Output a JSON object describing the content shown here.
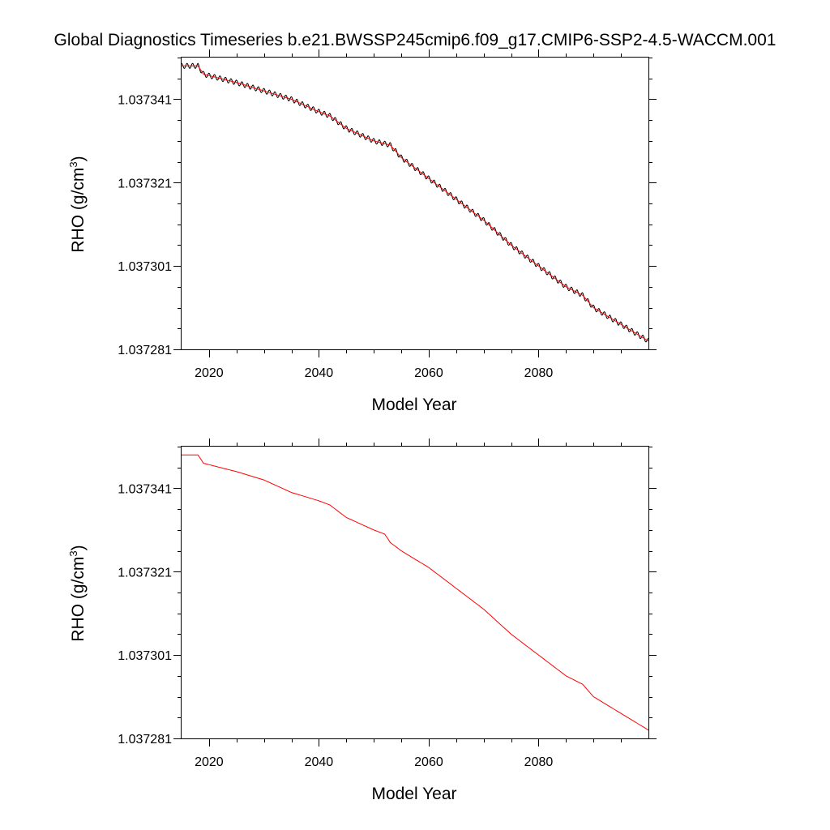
{
  "title": "Global Diagnostics Timeseries b.e21.BWSSP245cmip6.f09_g17.CMIP6-SSP2-4.5-WACCM.001",
  "colors": {
    "black_line": "#000000",
    "red_line": "#ff0000",
    "frame": "#000000"
  },
  "chart_data": [
    {
      "type": "line",
      "xlabel": "Model Year",
      "ylabel_main": "RHO (g/cm",
      "ylabel_sup": "3",
      "ylabel_close": ")",
      "xlim": [
        2015,
        2100
      ],
      "ylim": [
        1.037281,
        1.037351
      ],
      "xticks": [
        "2020",
        "2040",
        "2060",
        "2080"
      ],
      "yticks": [
        "1.037281",
        "1.037301",
        "1.037321",
        "1.037341"
      ],
      "series": [
        {
          "style": "monthly",
          "color": "#000000",
          "seasonal_amplitude": 6e-07
        },
        {
          "style": "annual",
          "color": "#ff0000"
        }
      ],
      "trend": {
        "x": [
          2015,
          2018,
          2019,
          2025,
          2030,
          2035,
          2040,
          2042,
          2045,
          2050,
          2053,
          2055,
          2060,
          2065,
          2068,
          2070,
          2075,
          2080,
          2085,
          2088,
          2090,
          2095,
          2100
        ],
        "y": [
          1.037349,
          1.037349,
          1.037347,
          1.037345,
          1.037343,
          1.037341,
          1.037338,
          1.037337,
          1.037334,
          1.037331,
          1.03733,
          1.037327,
          1.037322,
          1.037317,
          1.037314,
          1.037312,
          1.037306,
          1.037301,
          1.037296,
          1.037294,
          1.037291,
          1.037287,
          1.037283
        ]
      }
    },
    {
      "type": "line",
      "xlabel": "Model Year",
      "ylabel_main": "RHO (g/cm",
      "ylabel_sup": "3",
      "ylabel_close": ")",
      "xlim": [
        2015,
        2100
      ],
      "ylim": [
        1.037281,
        1.037351
      ],
      "xticks": [
        "2020",
        "2040",
        "2060",
        "2080"
      ],
      "yticks": [
        "1.037281",
        "1.037301",
        "1.037321",
        "1.037341"
      ],
      "series": [
        {
          "style": "annual",
          "color": "#ff0000"
        }
      ],
      "trend": {
        "x": [
          2015,
          2018,
          2019,
          2022,
          2025,
          2030,
          2035,
          2040,
          2042,
          2045,
          2050,
          2052,
          2053,
          2055,
          2060,
          2065,
          2068,
          2070,
          2075,
          2080,
          2085,
          2088,
          2090,
          2095,
          2100
        ],
        "y": [
          1.037349,
          1.037349,
          1.037347,
          1.037346,
          1.037345,
          1.037343,
          1.03734,
          1.037338,
          1.037337,
          1.037334,
          1.037331,
          1.03733,
          1.037328,
          1.037326,
          1.037322,
          1.037317,
          1.037314,
          1.037312,
          1.037306,
          1.037301,
          1.037296,
          1.037294,
          1.037291,
          1.037287,
          1.037283
        ]
      }
    }
  ]
}
